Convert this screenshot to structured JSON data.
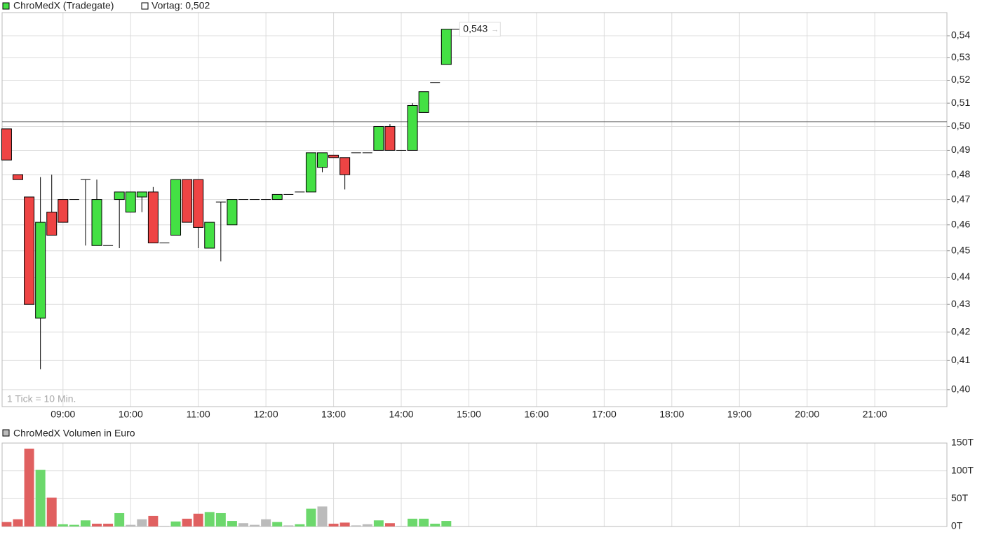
{
  "chart_data": [
    {
      "type": "candlestick",
      "title": "ChroMedX (Tradegate)",
      "note": "1 Tick = 10 Min.",
      "prev_close": {
        "value": 0.502,
        "label": "Vortag: 0,502"
      },
      "last_price": {
        "value": 0.543,
        "label": "0,543"
      },
      "up_color": "#44e044",
      "down_color": "#ee4444",
      "ylog": true,
      "grid": true,
      "xlim": [
        "08:06",
        "22:04"
      ],
      "xticks": [
        "09:00",
        "10:00",
        "11:00",
        "12:00",
        "13:00",
        "14:00",
        "15:00",
        "16:00",
        "17:00",
        "18:00",
        "19:00",
        "20:00",
        "21:00"
      ],
      "ylim": [
        0.3943,
        0.5507
      ],
      "yticks": [
        {
          "value": 0.4,
          "label": "0,40"
        },
        {
          "value": 0.41,
          "label": "0,41"
        },
        {
          "value": 0.42,
          "label": "0,42"
        },
        {
          "value": 0.43,
          "label": "0,43"
        },
        {
          "value": 0.44,
          "label": "0,44"
        },
        {
          "value": 0.45,
          "label": "0,45"
        },
        {
          "value": 0.46,
          "label": "0,46"
        },
        {
          "value": 0.47,
          "label": "0,47"
        },
        {
          "value": 0.48,
          "label": "0,48"
        },
        {
          "value": 0.49,
          "label": "0,49"
        },
        {
          "value": 0.5,
          "label": "0,50"
        },
        {
          "value": 0.51,
          "label": "0,51"
        },
        {
          "value": 0.52,
          "label": "0,52"
        },
        {
          "value": 0.53,
          "label": "0,53"
        },
        {
          "value": 0.54,
          "label": "0,54"
        }
      ],
      "x": [
        "08:10",
        "08:20",
        "08:30",
        "08:40",
        "08:50",
        "09:00",
        "09:10",
        "09:20",
        "09:30",
        "09:40",
        "09:50",
        "10:00",
        "10:10",
        "10:20",
        "10:30",
        "10:40",
        "10:50",
        "11:00",
        "11:10",
        "11:20",
        "11:30",
        "11:40",
        "11:50",
        "12:00",
        "12:10",
        "12:20",
        "12:30",
        "12:40",
        "12:50",
        "13:00",
        "13:10",
        "13:20",
        "13:30",
        "13:40",
        "13:50",
        "14:00",
        "14:10",
        "14:20",
        "14:30",
        "14:40"
      ],
      "open": [
        0.499,
        0.48,
        0.471,
        0.425,
        0.465,
        0.47,
        0.47,
        0.478,
        0.452,
        0.452,
        0.47,
        0.465,
        0.471,
        0.473,
        0.453,
        0.456,
        0.478,
        0.478,
        0.451,
        0.469,
        0.46,
        0.47,
        0.47,
        0.47,
        0.47,
        0.472,
        0.473,
        0.473,
        0.483,
        0.488,
        0.487,
        0.489,
        0.489,
        0.49,
        0.5,
        0.49,
        0.49,
        0.506,
        0.519,
        0.527
      ],
      "high": [
        0.499,
        0.48,
        0.471,
        0.479,
        0.48,
        0.47,
        0.47,
        0.478,
        0.478,
        0.452,
        0.473,
        0.473,
        0.473,
        0.475,
        0.453,
        0.478,
        0.478,
        0.478,
        0.461,
        0.469,
        0.47,
        0.47,
        0.47,
        0.47,
        0.472,
        0.472,
        0.473,
        0.489,
        0.489,
        0.488,
        0.487,
        0.489,
        0.489,
        0.5,
        0.501,
        0.49,
        0.51,
        0.515,
        0.519,
        0.543
      ],
      "low": [
        0.486,
        0.478,
        0.43,
        0.407,
        0.456,
        0.461,
        0.47,
        0.452,
        0.452,
        0.452,
        0.451,
        0.465,
        0.465,
        0.453,
        0.453,
        0.456,
        0.461,
        0.451,
        0.451,
        0.446,
        0.46,
        0.47,
        0.47,
        0.47,
        0.47,
        0.472,
        0.473,
        0.473,
        0.481,
        0.487,
        0.474,
        0.489,
        0.489,
        0.49,
        0.49,
        0.49,
        0.49,
        0.506,
        0.519,
        0.527
      ],
      "close": [
        0.486,
        0.478,
        0.43,
        0.461,
        0.456,
        0.461,
        0.47,
        0.478,
        0.47,
        0.452,
        0.473,
        0.473,
        0.473,
        0.453,
        0.453,
        0.478,
        0.461,
        0.459,
        0.461,
        0.469,
        0.47,
        0.47,
        0.47,
        0.47,
        0.472,
        0.472,
        0.473,
        0.489,
        0.489,
        0.487,
        0.48,
        0.489,
        0.489,
        0.5,
        0.49,
        0.49,
        0.509,
        0.515,
        0.519,
        0.543
      ]
    },
    {
      "type": "volume",
      "title": "ChroMedX Volumen in Euro",
      "grid": true,
      "ylim": [
        0,
        150
      ],
      "yticks": [
        {
          "value": 0,
          "label": "0T"
        },
        {
          "value": 50,
          "label": "50T"
        },
        {
          "value": 100,
          "label": "100T"
        },
        {
          "value": 150,
          "label": "150T"
        }
      ],
      "values": [
        8,
        13,
        140,
        102,
        52,
        4,
        3,
        11,
        5,
        5,
        24,
        3,
        13,
        19,
        1,
        9,
        14,
        23,
        26,
        24,
        10,
        6,
        3,
        13,
        8,
        2,
        4,
        32,
        36,
        5,
        7,
        2,
        4,
        11,
        6,
        1,
        14,
        14,
        5,
        10
      ],
      "colors": [
        "#e06060",
        "#e06060",
        "#e06060",
        "#6cd86c",
        "#e06060",
        "#6cd86c",
        "#6cd86c",
        "#6cd86c",
        "#e06060",
        "#e06060",
        "#6cd86c",
        "#bbbbbb",
        "#bbbbbb",
        "#e06060",
        "#bbbbbb",
        "#6cd86c",
        "#e06060",
        "#e06060",
        "#6cd86c",
        "#6cd86c",
        "#6cd86c",
        "#bbbbbb",
        "#bbbbbb",
        "#bbbbbb",
        "#6cd86c",
        "#bbbbbb",
        "#6cd86c",
        "#6cd86c",
        "#bbbbbb",
        "#e06060",
        "#e06060",
        "#bbbbbb",
        "#bbbbbb",
        "#6cd86c",
        "#e06060",
        "#bbbbbb",
        "#6cd86c",
        "#6cd86c",
        "#6cd86c",
        "#6cd86c"
      ],
      "legend_color": "#bbbbbb"
    }
  ]
}
